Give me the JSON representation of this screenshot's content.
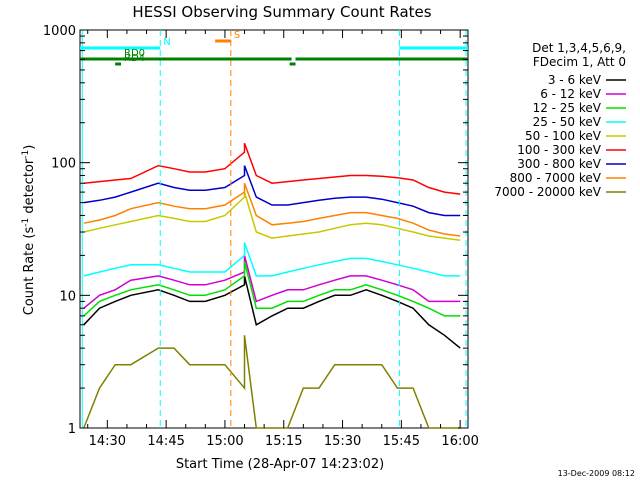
{
  "chart_data": {
    "type": "line",
    "title": "HESSI Observing Summary Count Rates",
    "xlabel": "Start Time (28-Apr-07 14:23:02)",
    "ylabel": "Count Rate (s⁻¹ detector⁻¹)",
    "ylabel_parts": {
      "main": "Count Rate (s",
      "sup1": "-1",
      "mid": " detector",
      "sup2": "-1",
      "end": ")"
    },
    "yscale": "log",
    "ylim": [
      1,
      1000
    ],
    "xlim_min": [
      23.03,
      122.0
    ],
    "x_start_clock": "14:23:02",
    "x_ticks": [
      {
        "min": 30.0,
        "label": "14:30"
      },
      {
        "min": 45.0,
        "label": "14:45"
      },
      {
        "min": 60.0,
        "label": "15:00"
      },
      {
        "min": 75.0,
        "label": "15:15"
      },
      {
        "min": 90.0,
        "label": "15:30"
      },
      {
        "min": 105.0,
        "label": "15:45"
      },
      {
        "min": 120.0,
        "label": "16:00"
      }
    ],
    "y_ticks": [
      {
        "value": 1,
        "label": "1"
      },
      {
        "value": 10,
        "label": "10"
      },
      {
        "value": 100,
        "label": "100"
      },
      {
        "value": 1000,
        "label": "1000"
      }
    ],
    "legend_header": [
      "Det 1,3,4,5,6,9,",
      "FDecim 1, Att 0"
    ],
    "series": [
      {
        "name": "3 - 6 keV",
        "color": "#000000",
        "values": [
          6,
          8,
          9,
          10,
          11,
          10,
          9,
          9,
          10,
          12,
          14,
          6,
          7,
          8,
          8,
          9,
          10,
          10,
          11,
          10,
          9,
          8,
          6,
          5,
          4
        ]
      },
      {
        "name": "6 - 12 keV",
        "color": "#d000d0",
        "values": [
          8,
          10,
          11,
          13,
          14,
          13,
          12,
          12,
          13,
          15,
          20,
          9,
          10,
          11,
          11,
          12,
          13,
          14,
          14,
          13,
          12,
          11,
          9,
          9,
          9
        ]
      },
      {
        "name": "12 - 25 keV",
        "color": "#00e000",
        "values": [
          7,
          9,
          10,
          11,
          12,
          11,
          10,
          10,
          11,
          14,
          18,
          8,
          8,
          9,
          9,
          10,
          11,
          11,
          12,
          11,
          10,
          9,
          8,
          7,
          7
        ]
      },
      {
        "name": "25 - 50 keV",
        "color": "#00ffff",
        "values": [
          14,
          15,
          16,
          17,
          17,
          16,
          15,
          15,
          15,
          20,
          25,
          14,
          14,
          15,
          16,
          17,
          18,
          19,
          19,
          18,
          17,
          16,
          15,
          14,
          14
        ]
      },
      {
        "name": "50 - 100 keV",
        "color": "#c8c800",
        "values": [
          30,
          32,
          34,
          36,
          40,
          38,
          36,
          36,
          40,
          55,
          60,
          30,
          27,
          28,
          29,
          30,
          32,
          34,
          35,
          34,
          32,
          30,
          28,
          27,
          26
        ]
      },
      {
        "name": "100 - 300 keV",
        "color": "#ff0000",
        "values": [
          70,
          72,
          74,
          76,
          95,
          90,
          85,
          85,
          90,
          120,
          140,
          80,
          70,
          72,
          74,
          76,
          78,
          80,
          80,
          79,
          77,
          74,
          65,
          60,
          58
        ]
      },
      {
        "name": "300 - 800 keV",
        "color": "#0000cc",
        "values": [
          50,
          52,
          55,
          60,
          70,
          65,
          62,
          62,
          65,
          80,
          95,
          55,
          48,
          48,
          50,
          52,
          54,
          55,
          55,
          53,
          50,
          47,
          42,
          40,
          40
        ]
      },
      {
        "name": "800 - 7000 keV",
        "color": "#ff8000",
        "values": [
          35,
          37,
          40,
          45,
          50,
          47,
          45,
          45,
          48,
          60,
          70,
          40,
          34,
          35,
          36,
          38,
          40,
          42,
          42,
          40,
          38,
          35,
          31,
          29,
          28
        ]
      },
      {
        "name": "7000 - 20000 keV",
        "color": "#808000",
        "values": [
          1,
          2,
          3,
          3,
          4,
          4,
          3,
          3,
          3,
          2,
          5,
          1,
          1,
          1,
          2,
          2,
          3,
          3,
          3,
          3,
          2,
          2,
          1,
          1,
          1
        ]
      }
    ],
    "series_x_min": [
      24,
      28,
      32,
      36,
      43,
      47,
      51,
      55,
      60,
      65,
      65,
      68,
      72,
      76,
      80,
      84,
      88,
      92,
      96,
      100,
      104,
      108,
      112,
      116,
      120
    ],
    "flags": [
      {
        "label": "N",
        "color": "#00ffff",
        "segments": [
          [
            23.03,
            43.5
          ],
          [
            104.5,
            122.0
          ]
        ],
        "level": "upper"
      },
      {
        "label": "S",
        "color": "#ff8000",
        "segments": [
          [
            57.5,
            61.5
          ]
        ],
        "level": "top"
      },
      {
        "label": "RD0",
        "color": "#008000",
        "segments": [
          [
            23.03,
            33.5
          ],
          [
            33.5,
            77.0
          ],
          [
            78.0,
            122.0
          ]
        ],
        "level": "mid"
      },
      {
        "label": "RD4",
        "color": "#008000",
        "segments": [
          [
            32.0,
            33.5
          ],
          [
            76.5,
            78.0
          ]
        ],
        "level": "low"
      }
    ],
    "vertical_markers": [
      {
        "min": 43.5,
        "color": "#00ffff",
        "style": "dashed"
      },
      {
        "min": 104.5,
        "color": "#00ffff",
        "style": "dashed"
      },
      {
        "min": 121.5,
        "color": "#00ffff",
        "style": "dashed"
      },
      {
        "min": 61.5,
        "color": "#ff8000",
        "style": "dashed"
      },
      {
        "min": 23.6,
        "color": "#00ffff",
        "style": "solid"
      }
    ],
    "grid": false,
    "legend_position": "right"
  },
  "footer": {
    "date_stamp": "13-Dec-2009 08:12"
  }
}
